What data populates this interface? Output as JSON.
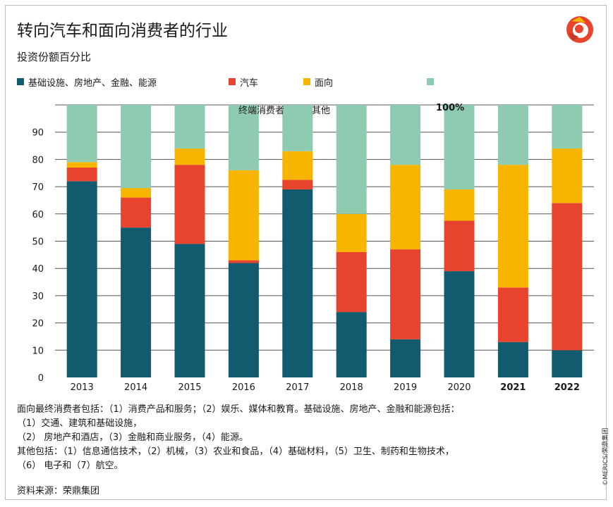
{
  "title": "转向汽车和面向消费者的行业",
  "subtitle": "投资份额百分比",
  "legend": [
    {
      "label": "基础设施、房地产、金融、能源",
      "color": "#125a6e"
    },
    {
      "label": "汽车",
      "color": "#e8432c"
    },
    {
      "label": "面向",
      "color": "#f7b500"
    },
    {
      "label": "",
      "color": "#8ecbb0"
    }
  ],
  "legend_overflow": {
    "part1": "终端消费者",
    "part2": "其他",
    "part3": "100%"
  },
  "chart_data": {
    "type": "bar",
    "stacked": true,
    "categories": [
      "2013",
      "2014",
      "2015",
      "2016",
      "2017",
      "2018",
      "2019",
      "2020",
      "2021",
      "2022"
    ],
    "series": [
      {
        "name": "基础设施、房地产、金融、能源",
        "color": "#125a6e",
        "values": [
          72,
          55,
          49,
          42,
          69,
          24,
          14,
          39,
          13,
          10
        ]
      },
      {
        "name": "汽车",
        "color": "#e8432c",
        "values": [
          5,
          11,
          29,
          1,
          3.5,
          22,
          33,
          18.5,
          20,
          54
        ]
      },
      {
        "name": "面向",
        "color": "#f7b500",
        "values": [
          2,
          3.5,
          6,
          33,
          10.5,
          14,
          31,
          11.5,
          45,
          20
        ]
      },
      {
        "name": "",
        "color": "#8ecbb0",
        "values": [
          21,
          30.5,
          16,
          24,
          17,
          40,
          22,
          31,
          22,
          16
        ]
      }
    ],
    "ylim": [
      0,
      100
    ],
    "yticks": [
      "0",
      "10",
      "20",
      "30",
      "40",
      "50",
      "60",
      "70",
      "80",
      "90"
    ],
    "grid": true
  },
  "notes": [
    "面向最终消费者包括：（1）消费产品和服务；（2）娱乐、媒体和教育。基础设施、房地产、金融和能源包括：",
    "（1）交通、建筑和基础设施，",
    "（2） 房地产和酒店，（3）金融和商业服务，（4）能源。",
    "其他包括：（1）信息通信技术，（2）机械，（3）农业和食品，（4）基础材料，（5）卫生、制药和生物技术，",
    "（6） 电子和（7）航空。"
  ],
  "source": "资料来源：荣鼎集团",
  "copyright": "©MERICS/荣鼎集团"
}
